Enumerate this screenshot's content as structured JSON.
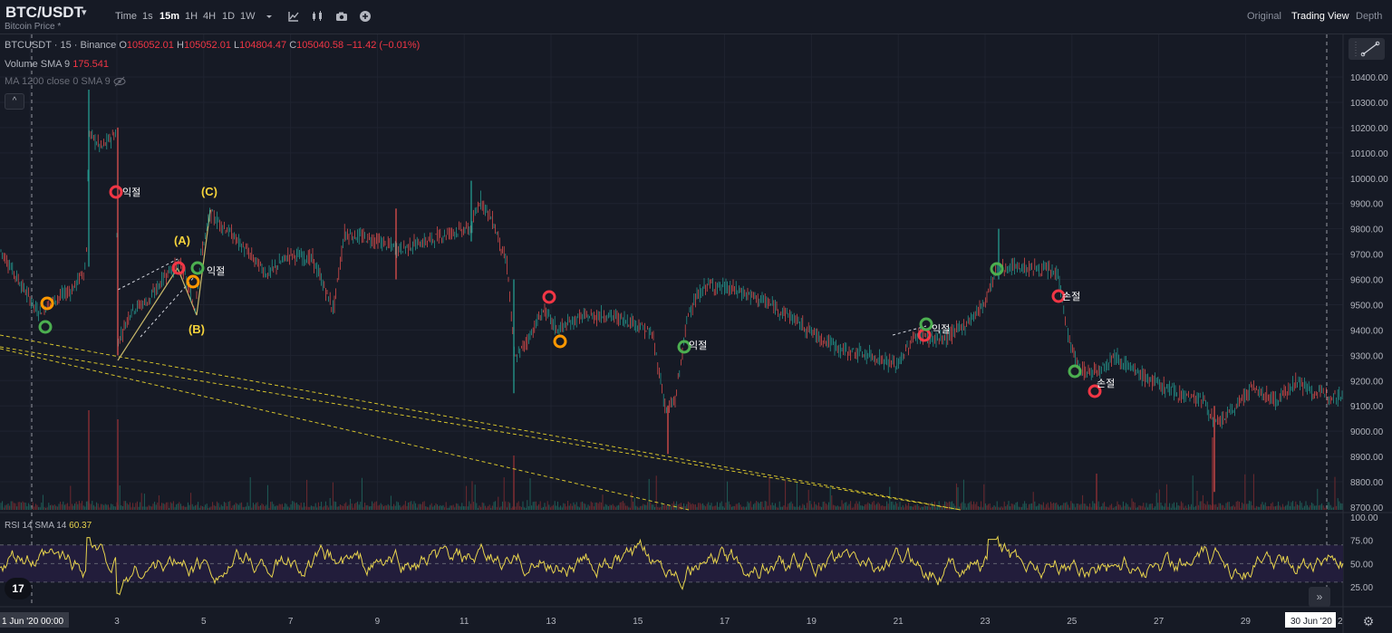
{
  "header": {
    "symbol": "BTC/USDT",
    "subtitle": "Bitcoin Price *",
    "toolbar_items": [
      "Time",
      "1s",
      "15m",
      "1H",
      "4H",
      "1D",
      "1W"
    ],
    "active_interval": "15m",
    "icons": [
      "chevron-down-icon",
      "indicator-icon",
      "candle-type-icon",
      "camera-icon",
      "add-icon"
    ],
    "views": [
      "Original",
      "Trading View",
      "Depth"
    ],
    "active_view": "Trading View"
  },
  "legend": {
    "title": "BTCUSDT · 15 · Binance",
    "o_label": "O",
    "o_value": "105052.01",
    "h_label": "H",
    "h_value": "105052.01",
    "l_label": "L",
    "l_value": "104804.47",
    "c_label": "C",
    "c_value": "105040.58",
    "change": "−11.42 (−0.01%)",
    "volume_label": "Volume SMA 9",
    "volume_value": "175.541",
    "ma_label": "MA 1200 close 0 SMA 9",
    "collapse_symbol": "^"
  },
  "rsi": {
    "label": "RSI 14 SMA 14",
    "value": "60.37",
    "axis_labels": [
      "100.00",
      "75.00",
      "50.00",
      "25.00"
    ]
  },
  "price_axis": [
    "10400.00",
    "10300.00",
    "10200.00",
    "10100.00",
    "10000.00",
    "9900.00",
    "9800.00",
    "9700.00",
    "9600.00",
    "9500.00",
    "9400.00",
    "9300.00",
    "9200.00",
    "9100.00",
    "9000.00",
    "8900.00",
    "8800.00",
    "8700.00"
  ],
  "time_axis": [
    "3",
    "5",
    "7",
    "9",
    "11",
    "13",
    "15",
    "17",
    "19",
    "21",
    "23",
    "25",
    "27",
    "29"
  ],
  "time_start_label": "1 Jun '20  00:00",
  "time_end_label": "30 Jun '20",
  "time_end_suffix": "2",
  "annotations": {
    "wave_a": "(A)",
    "wave_b": "(B)",
    "wave_c": "(C)",
    "marker_text_1": "익절",
    "marker_text_2": "익절",
    "marker_text_3": "익절",
    "marker_text_4": "손절",
    "marker_text_5": "익절",
    "marker_text_6": "손절"
  },
  "logo_text": "17",
  "scroll_symbol": "»",
  "settings_symbol": "⚙",
  "colors": {
    "background": "#161a25",
    "up": "#26a69a",
    "down": "#ef5350",
    "rsi": "#e8d44d",
    "marker_red": "#f23645",
    "marker_green": "#4caf50",
    "marker_orange": "#ff9800",
    "wave_label": "#f5d33a"
  }
}
